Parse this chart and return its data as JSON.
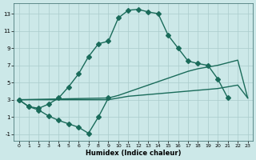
{
  "xlabel": "Humidex (Indice chaleur)",
  "bg_color": "#cce8e8",
  "grid_color": "#aacccc",
  "line_color": "#1a6b5a",
  "xlim": [
    -0.5,
    23.5
  ],
  "ylim": [
    -1.8,
    14.2
  ],
  "yticks": [
    -1,
    1,
    3,
    5,
    7,
    9,
    11,
    13
  ],
  "xticks": [
    0,
    1,
    2,
    3,
    4,
    5,
    6,
    7,
    8,
    9,
    10,
    11,
    12,
    13,
    14,
    15,
    16,
    17,
    18,
    19,
    20,
    21,
    22,
    23
  ],
  "line_upper_x": [
    0,
    1,
    2,
    3,
    4,
    5,
    6,
    7,
    8,
    9,
    10,
    11,
    12,
    13,
    14,
    15,
    16,
    17,
    18,
    19,
    20,
    21,
    22,
    23
  ],
  "line_upper_y": [
    3.0,
    2.2,
    2.0,
    2.5,
    3.2,
    4.5,
    6.0,
    8.0,
    9.5,
    9.8,
    12.5,
    13.4,
    13.5,
    13.2,
    13.0,
    10.5,
    9.0,
    7.5,
    7.2,
    7.0,
    5.4,
    3.2,
    null,
    null
  ],
  "line_dip_x": [
    0,
    1,
    2,
    3,
    4,
    5,
    6,
    7,
    8,
    9
  ],
  "line_dip_y": [
    3.0,
    2.2,
    1.8,
    1.1,
    0.6,
    0.2,
    -0.2,
    -0.9,
    1.0,
    3.2
  ],
  "line_diag_upper_x": [
    0,
    9,
    10,
    11,
    12,
    13,
    14,
    15,
    16,
    17,
    18,
    19,
    20,
    21,
    22,
    23
  ],
  "line_diag_upper_y": [
    3.0,
    3.2,
    3.5,
    3.9,
    4.3,
    4.7,
    5.1,
    5.5,
    5.9,
    6.3,
    6.6,
    6.8,
    7.0,
    7.3,
    7.6,
    3.2
  ],
  "line_diag_lower_x": [
    0,
    9,
    10,
    11,
    12,
    13,
    14,
    15,
    16,
    17,
    18,
    19,
    20,
    21,
    22,
    23
  ],
  "line_diag_lower_y": [
    3.0,
    3.0,
    3.2,
    3.4,
    3.5,
    3.6,
    3.7,
    3.8,
    3.9,
    4.0,
    4.1,
    4.2,
    4.3,
    4.5,
    4.7,
    3.2
  ],
  "marker_size": 3.0,
  "linewidth": 1.0
}
